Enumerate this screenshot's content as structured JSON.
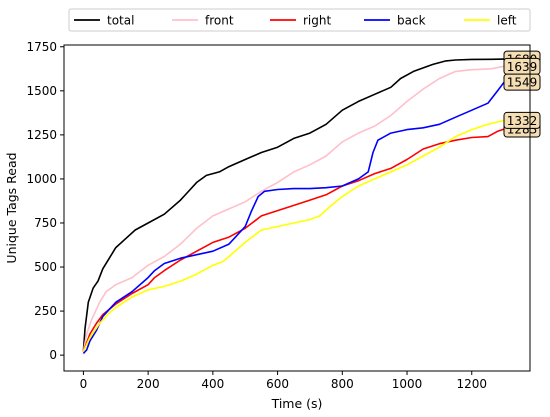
{
  "chart_data": {
    "type": "line",
    "title": "",
    "xlabel": "Time (s)",
    "ylabel": "Unique Tags Read",
    "xlim": [
      -60,
      1380
    ],
    "ylim": [
      -90,
      1760
    ],
    "xticks": [
      0,
      200,
      400,
      600,
      800,
      1000,
      1200
    ],
    "yticks": [
      0,
      250,
      500,
      750,
      1000,
      1250,
      1500,
      1750
    ],
    "grid": false,
    "legend_position": "top (above plot, horizontal)",
    "series": [
      {
        "name": "total",
        "color": "#000000",
        "end_label": "1680",
        "points": [
          [
            0,
            20
          ],
          [
            5,
            150
          ],
          [
            15,
            300
          ],
          [
            30,
            380
          ],
          [
            45,
            420
          ],
          [
            60,
            490
          ],
          [
            80,
            550
          ],
          [
            100,
            610
          ],
          [
            130,
            660
          ],
          [
            160,
            710
          ],
          [
            200,
            750
          ],
          [
            250,
            800
          ],
          [
            300,
            880
          ],
          [
            320,
            920
          ],
          [
            350,
            980
          ],
          [
            380,
            1020
          ],
          [
            420,
            1040
          ],
          [
            450,
            1070
          ],
          [
            500,
            1110
          ],
          [
            550,
            1150
          ],
          [
            600,
            1180
          ],
          [
            650,
            1230
          ],
          [
            700,
            1260
          ],
          [
            750,
            1310
          ],
          [
            800,
            1390
          ],
          [
            850,
            1440
          ],
          [
            900,
            1480
          ],
          [
            950,
            1520
          ],
          [
            980,
            1570
          ],
          [
            1020,
            1610
          ],
          [
            1080,
            1650
          ],
          [
            1120,
            1670
          ],
          [
            1150,
            1675
          ],
          [
            1200,
            1678
          ],
          [
            1260,
            1679
          ],
          [
            1300,
            1680
          ]
        ]
      },
      {
        "name": "front",
        "color": "#ffc0cb",
        "end_label": "1639",
        "points": [
          [
            0,
            20
          ],
          [
            10,
            120
          ],
          [
            25,
            200
          ],
          [
            50,
            300
          ],
          [
            70,
            360
          ],
          [
            100,
            400
          ],
          [
            150,
            440
          ],
          [
            200,
            510
          ],
          [
            250,
            560
          ],
          [
            300,
            630
          ],
          [
            350,
            720
          ],
          [
            400,
            790
          ],
          [
            450,
            830
          ],
          [
            500,
            870
          ],
          [
            550,
            930
          ],
          [
            600,
            980
          ],
          [
            650,
            1040
          ],
          [
            700,
            1080
          ],
          [
            750,
            1130
          ],
          [
            800,
            1210
          ],
          [
            850,
            1260
          ],
          [
            900,
            1300
          ],
          [
            950,
            1360
          ],
          [
            1000,
            1440
          ],
          [
            1050,
            1510
          ],
          [
            1100,
            1570
          ],
          [
            1150,
            1610
          ],
          [
            1200,
            1620
          ],
          [
            1260,
            1625
          ],
          [
            1300,
            1639
          ]
        ]
      },
      {
        "name": "right",
        "color": "#ff0000",
        "end_label": "1283",
        "points": [
          [
            0,
            20
          ],
          [
            20,
            120
          ],
          [
            40,
            180
          ],
          [
            60,
            230
          ],
          [
            100,
            290
          ],
          [
            150,
            350
          ],
          [
            200,
            400
          ],
          [
            220,
            440
          ],
          [
            250,
            480
          ],
          [
            300,
            540
          ],
          [
            350,
            590
          ],
          [
            400,
            640
          ],
          [
            450,
            670
          ],
          [
            500,
            720
          ],
          [
            550,
            790
          ],
          [
            600,
            820
          ],
          [
            650,
            850
          ],
          [
            700,
            880
          ],
          [
            750,
            910
          ],
          [
            800,
            960
          ],
          [
            850,
            990
          ],
          [
            900,
            1030
          ],
          [
            950,
            1060
          ],
          [
            1000,
            1110
          ],
          [
            1050,
            1170
          ],
          [
            1100,
            1200
          ],
          [
            1150,
            1220
          ],
          [
            1200,
            1235
          ],
          [
            1250,
            1240
          ],
          [
            1280,
            1270
          ],
          [
            1300,
            1283
          ]
        ]
      },
      {
        "name": "back",
        "color": "#0000ff",
        "end_label": "1549",
        "points": [
          [
            0,
            10
          ],
          [
            10,
            30
          ],
          [
            20,
            80
          ],
          [
            40,
            140
          ],
          [
            60,
            220
          ],
          [
            100,
            300
          ],
          [
            150,
            360
          ],
          [
            200,
            440
          ],
          [
            220,
            480
          ],
          [
            250,
            520
          ],
          [
            300,
            550
          ],
          [
            350,
            570
          ],
          [
            400,
            590
          ],
          [
            450,
            630
          ],
          [
            500,
            730
          ],
          [
            520,
            820
          ],
          [
            540,
            900
          ],
          [
            560,
            930
          ],
          [
            600,
            940
          ],
          [
            650,
            945
          ],
          [
            700,
            945
          ],
          [
            750,
            950
          ],
          [
            800,
            960
          ],
          [
            850,
            1000
          ],
          [
            880,
            1040
          ],
          [
            895,
            1150
          ],
          [
            910,
            1220
          ],
          [
            950,
            1260
          ],
          [
            1000,
            1280
          ],
          [
            1050,
            1290
          ],
          [
            1100,
            1310
          ],
          [
            1150,
            1350
          ],
          [
            1200,
            1390
          ],
          [
            1250,
            1430
          ],
          [
            1280,
            1500
          ],
          [
            1300,
            1549
          ]
        ]
      },
      {
        "name": "left",
        "color": "#ffff00",
        "end_label": "1332",
        "points": [
          [
            0,
            20
          ],
          [
            20,
            100
          ],
          [
            50,
            180
          ],
          [
            80,
            240
          ],
          [
            100,
            270
          ],
          [
            150,
            330
          ],
          [
            200,
            370
          ],
          [
            250,
            390
          ],
          [
            300,
            420
          ],
          [
            350,
            460
          ],
          [
            400,
            510
          ],
          [
            430,
            530
          ],
          [
            450,
            560
          ],
          [
            500,
            640
          ],
          [
            550,
            710
          ],
          [
            600,
            730
          ],
          [
            650,
            750
          ],
          [
            700,
            770
          ],
          [
            730,
            790
          ],
          [
            760,
            840
          ],
          [
            800,
            900
          ],
          [
            850,
            960
          ],
          [
            900,
            1000
          ],
          [
            950,
            1040
          ],
          [
            1000,
            1080
          ],
          [
            1050,
            1130
          ],
          [
            1100,
            1180
          ],
          [
            1150,
            1240
          ],
          [
            1200,
            1280
          ],
          [
            1250,
            1310
          ],
          [
            1300,
            1332
          ]
        ]
      }
    ]
  }
}
